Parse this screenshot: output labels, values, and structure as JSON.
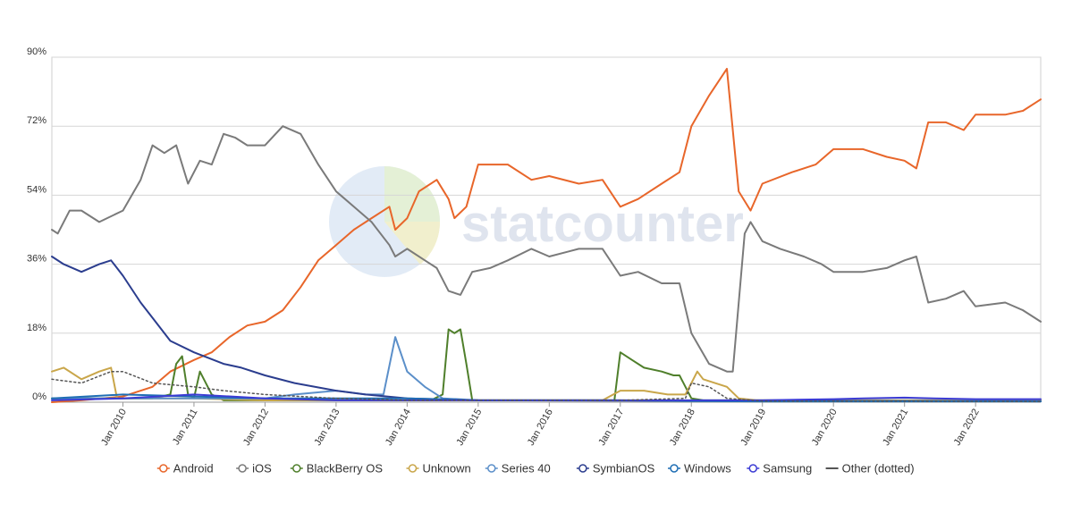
{
  "chart_data": {
    "type": "line",
    "title": "",
    "xlabel": "",
    "ylabel": "",
    "watermark": "statcounter",
    "ylim": [
      0,
      90
    ],
    "y_ticks": [
      "0%",
      "18%",
      "36%",
      "54%",
      "72%",
      "90%"
    ],
    "x_range": [
      "2009-01",
      "2022-12"
    ],
    "x_ticks": [
      "Jan 2010",
      "Jan 2011",
      "Jan 2012",
      "Jan 2013",
      "Jan 2014",
      "Jan 2015",
      "Jan 2016",
      "Jan 2017",
      "Jan 2018",
      "Jan 2019",
      "Jan 2020",
      "Jan 2021",
      "Jan 2022"
    ],
    "grid": true,
    "legend_position": "bottom",
    "series": [
      {
        "name": "Android",
        "color": "#e8662a",
        "style": "solid",
        "marker": "circle",
        "points": [
          [
            "2009-01",
            0
          ],
          [
            "2009-06",
            0.5
          ],
          [
            "2010-01",
            1.5
          ],
          [
            "2010-06",
            4
          ],
          [
            "2010-09",
            8
          ],
          [
            "2011-01",
            11
          ],
          [
            "2011-04",
            13
          ],
          [
            "2011-07",
            17
          ],
          [
            "2011-10",
            20
          ],
          [
            "2012-01",
            21
          ],
          [
            "2012-04",
            24
          ],
          [
            "2012-07",
            30
          ],
          [
            "2012-10",
            37
          ],
          [
            "2013-01",
            41
          ],
          [
            "2013-04",
            45
          ],
          [
            "2013-07",
            48
          ],
          [
            "2013-10",
            51
          ],
          [
            "2013-11",
            45
          ],
          [
            "2014-01",
            48
          ],
          [
            "2014-03",
            55
          ],
          [
            "2014-06",
            58
          ],
          [
            "2014-08",
            53
          ],
          [
            "2014-09",
            48
          ],
          [
            "2014-11",
            51
          ],
          [
            "2015-01",
            62
          ],
          [
            "2015-06",
            62
          ],
          [
            "2015-10",
            58
          ],
          [
            "2016-01",
            59
          ],
          [
            "2016-06",
            57
          ],
          [
            "2016-10",
            58
          ],
          [
            "2017-01",
            51
          ],
          [
            "2017-04",
            53
          ],
          [
            "2017-08",
            57
          ],
          [
            "2017-11",
            60
          ],
          [
            "2018-01",
            72
          ],
          [
            "2018-04",
            80
          ],
          [
            "2018-07",
            87
          ],
          [
            "2018-09",
            55
          ],
          [
            "2018-11",
            50
          ],
          [
            "2019-01",
            57
          ],
          [
            "2019-06",
            60
          ],
          [
            "2019-10",
            62
          ],
          [
            "2020-01",
            66
          ],
          [
            "2020-06",
            66
          ],
          [
            "2020-10",
            64
          ],
          [
            "2021-01",
            63
          ],
          [
            "2021-03",
            61
          ],
          [
            "2021-05",
            73
          ],
          [
            "2021-08",
            73
          ],
          [
            "2021-11",
            71
          ],
          [
            "2022-01",
            75
          ],
          [
            "2022-06",
            75
          ],
          [
            "2022-09",
            76
          ],
          [
            "2022-12",
            79
          ]
        ]
      },
      {
        "name": "iOS",
        "color": "#7a7a7a",
        "style": "solid",
        "marker": "circle",
        "points": [
          [
            "2009-01",
            45
          ],
          [
            "2009-02",
            44
          ],
          [
            "2009-04",
            50
          ],
          [
            "2009-06",
            50
          ],
          [
            "2009-09",
            47
          ],
          [
            "2010-01",
            50
          ],
          [
            "2010-04",
            58
          ],
          [
            "2010-06",
            67
          ],
          [
            "2010-08",
            65
          ],
          [
            "2010-10",
            67
          ],
          [
            "2010-12",
            57
          ],
          [
            "2011-02",
            63
          ],
          [
            "2011-04",
            62
          ],
          [
            "2011-06",
            70
          ],
          [
            "2011-08",
            69
          ],
          [
            "2011-10",
            67
          ],
          [
            "2012-01",
            67
          ],
          [
            "2012-04",
            72
          ],
          [
            "2012-07",
            70
          ],
          [
            "2012-10",
            62
          ],
          [
            "2013-01",
            55
          ],
          [
            "2013-04",
            51
          ],
          [
            "2013-07",
            47
          ],
          [
            "2013-10",
            41
          ],
          [
            "2013-11",
            38
          ],
          [
            "2014-01",
            40
          ],
          [
            "2014-04",
            37
          ],
          [
            "2014-06",
            35
          ],
          [
            "2014-08",
            29
          ],
          [
            "2014-10",
            28
          ],
          [
            "2014-12",
            34
          ],
          [
            "2015-03",
            35
          ],
          [
            "2015-06",
            37
          ],
          [
            "2015-10",
            40
          ],
          [
            "2016-01",
            38
          ],
          [
            "2016-06",
            40
          ],
          [
            "2016-10",
            40
          ],
          [
            "2017-01",
            33
          ],
          [
            "2017-04",
            34
          ],
          [
            "2017-08",
            31
          ],
          [
            "2017-11",
            31
          ],
          [
            "2018-01",
            18
          ],
          [
            "2018-04",
            10
          ],
          [
            "2018-07",
            8
          ],
          [
            "2018-08",
            8
          ],
          [
            "2018-10",
            44
          ],
          [
            "2018-11",
            47
          ],
          [
            "2019-01",
            42
          ],
          [
            "2019-04",
            40
          ],
          [
            "2019-08",
            38
          ],
          [
            "2019-11",
            36
          ],
          [
            "2020-01",
            34
          ],
          [
            "2020-06",
            34
          ],
          [
            "2020-10",
            35
          ],
          [
            "2021-01",
            37
          ],
          [
            "2021-03",
            38
          ],
          [
            "2021-05",
            26
          ],
          [
            "2021-08",
            27
          ],
          [
            "2021-11",
            29
          ],
          [
            "2022-01",
            25
          ],
          [
            "2022-06",
            26
          ],
          [
            "2022-09",
            24
          ],
          [
            "2022-12",
            21
          ]
        ]
      },
      {
        "name": "BlackBerry OS",
        "color": "#4f7f2b",
        "style": "solid",
        "marker": "circle",
        "points": [
          [
            "2009-01",
            1
          ],
          [
            "2010-01",
            1
          ],
          [
            "2010-06",
            1
          ],
          [
            "2010-09",
            2
          ],
          [
            "2010-10",
            10
          ],
          [
            "2010-11",
            12
          ],
          [
            "2010-12",
            2
          ],
          [
            "2011-01",
            1
          ],
          [
            "2011-02",
            8
          ],
          [
            "2011-04",
            2
          ],
          [
            "2011-06",
            0.5
          ],
          [
            "2012-01",
            0.5
          ],
          [
            "2013-01",
            0.5
          ],
          [
            "2014-01",
            0.5
          ],
          [
            "2014-05",
            0.5
          ],
          [
            "2014-07",
            2
          ],
          [
            "2014-08",
            19
          ],
          [
            "2014-09",
            18
          ],
          [
            "2014-10",
            19
          ],
          [
            "2014-11",
            10
          ],
          [
            "2014-12",
            0.5
          ],
          [
            "2016-01",
            0.5
          ],
          [
            "2016-12",
            0.5
          ],
          [
            "2017-01",
            13
          ],
          [
            "2017-03",
            11
          ],
          [
            "2017-05",
            9
          ],
          [
            "2017-08",
            8
          ],
          [
            "2017-10",
            7
          ],
          [
            "2017-11",
            7
          ],
          [
            "2018-01",
            1
          ],
          [
            "2018-03",
            0.5
          ],
          [
            "2019-01",
            0.5
          ],
          [
            "2022-12",
            0.5
          ]
        ]
      },
      {
        "name": "Unknown",
        "color": "#c9a64a",
        "style": "solid",
        "marker": "circle",
        "points": [
          [
            "2009-01",
            8
          ],
          [
            "2009-03",
            9
          ],
          [
            "2009-06",
            6
          ],
          [
            "2009-09",
            8
          ],
          [
            "2009-11",
            9
          ],
          [
            "2009-12",
            1
          ],
          [
            "2010-06",
            1
          ],
          [
            "2011-01",
            1
          ],
          [
            "2012-01",
            0.5
          ],
          [
            "2014-01",
            0.5
          ],
          [
            "2016-01",
            0.5
          ],
          [
            "2016-10",
            0.5
          ],
          [
            "2017-01",
            3
          ],
          [
            "2017-05",
            3
          ],
          [
            "2017-09",
            2
          ],
          [
            "2017-12",
            2
          ],
          [
            "2018-01",
            5
          ],
          [
            "2018-02",
            8
          ],
          [
            "2018-03",
            6
          ],
          [
            "2018-05",
            5
          ],
          [
            "2018-07",
            4
          ],
          [
            "2018-09",
            1
          ],
          [
            "2018-12",
            0.5
          ],
          [
            "2022-12",
            0.5
          ]
        ]
      },
      {
        "name": "Series 40",
        "color": "#5b8fc9",
        "style": "solid",
        "marker": "circle",
        "points": [
          [
            "2009-01",
            1
          ],
          [
            "2010-01",
            1
          ],
          [
            "2011-01",
            1
          ],
          [
            "2012-01",
            1
          ],
          [
            "2012-06",
            2
          ],
          [
            "2013-01",
            3
          ],
          [
            "2013-06",
            2
          ],
          [
            "2013-09",
            2
          ],
          [
            "2013-11",
            17
          ],
          [
            "2014-01",
            8
          ],
          [
            "2014-04",
            4
          ],
          [
            "2014-07",
            1
          ],
          [
            "2015-01",
            0.5
          ],
          [
            "2022-12",
            0.3
          ]
        ]
      },
      {
        "name": "SymbianOS",
        "color": "#2b3d8e",
        "style": "solid",
        "marker": "circle",
        "points": [
          [
            "2009-01",
            38
          ],
          [
            "2009-03",
            36
          ],
          [
            "2009-06",
            34
          ],
          [
            "2009-09",
            36
          ],
          [
            "2009-11",
            37
          ],
          [
            "2010-01",
            33
          ],
          [
            "2010-04",
            26
          ],
          [
            "2010-06",
            22
          ],
          [
            "2010-09",
            16
          ],
          [
            "2011-01",
            13
          ],
          [
            "2011-06",
            10
          ],
          [
            "2011-09",
            9
          ],
          [
            "2012-01",
            7
          ],
          [
            "2012-06",
            5
          ],
          [
            "2013-01",
            3
          ],
          [
            "2013-06",
            2
          ],
          [
            "2014-01",
            1
          ],
          [
            "2015-01",
            0.5
          ],
          [
            "2022-12",
            0.2
          ]
        ]
      },
      {
        "name": "Windows",
        "color": "#1f6eb4",
        "style": "solid",
        "marker": "circle",
        "points": [
          [
            "2009-01",
            1
          ],
          [
            "2010-01",
            2
          ],
          [
            "2011-01",
            1.5
          ],
          [
            "2012-01",
            1
          ],
          [
            "2013-01",
            1
          ],
          [
            "2014-01",
            1
          ],
          [
            "2015-01",
            0.5
          ],
          [
            "2016-01",
            0.5
          ],
          [
            "2017-01",
            0.5
          ],
          [
            "2018-01",
            0.3
          ],
          [
            "2019-01",
            0.2
          ],
          [
            "2022-12",
            0.2
          ]
        ]
      },
      {
        "name": "Samsung",
        "color": "#3b3bd4",
        "style": "solid",
        "marker": "circle",
        "points": [
          [
            "2009-01",
            0.5
          ],
          [
            "2010-01",
            1
          ],
          [
            "2011-01",
            2
          ],
          [
            "2012-01",
            1
          ],
          [
            "2013-01",
            0.5
          ],
          [
            "2014-01",
            0.5
          ],
          [
            "2016-01",
            0.5
          ],
          [
            "2018-01",
            0.5
          ],
          [
            "2019-01",
            0.5
          ],
          [
            "2020-01",
            0.8
          ],
          [
            "2020-06",
            1
          ],
          [
            "2021-01",
            1.2
          ],
          [
            "2021-06",
            1
          ],
          [
            "2022-01",
            0.8
          ],
          [
            "2022-12",
            0.8
          ]
        ]
      },
      {
        "name": "Other (dotted)",
        "color": "#555555",
        "style": "dotted",
        "marker": "line",
        "points": [
          [
            "2009-01",
            6
          ],
          [
            "2009-06",
            5
          ],
          [
            "2009-11",
            8
          ],
          [
            "2010-01",
            8
          ],
          [
            "2010-06",
            5
          ],
          [
            "2011-01",
            4
          ],
          [
            "2011-06",
            3
          ],
          [
            "2012-01",
            2
          ],
          [
            "2013-01",
            1
          ],
          [
            "2014-01",
            0.5
          ],
          [
            "2017-01",
            0.5
          ],
          [
            "2017-12",
            1
          ],
          [
            "2018-01",
            5
          ],
          [
            "2018-04",
            4
          ],
          [
            "2018-07",
            1
          ],
          [
            "2019-01",
            0.3
          ],
          [
            "2022-12",
            0.2
          ]
        ]
      }
    ]
  }
}
